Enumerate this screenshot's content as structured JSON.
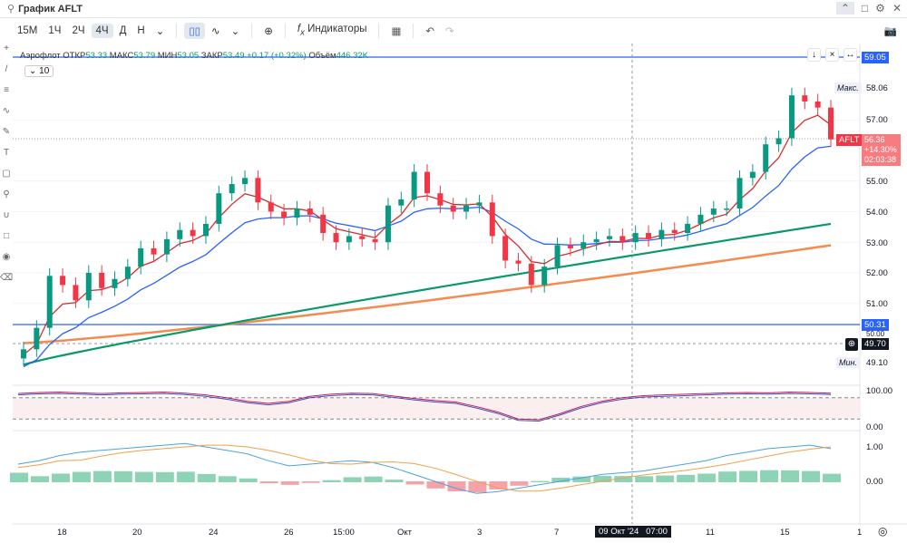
{
  "window": {
    "title": "График AFLT",
    "collapse_icon": "chevron-up",
    "icons": [
      "maximize-icon",
      "gear-icon",
      "close-icon"
    ]
  },
  "toolbar": {
    "intervals": [
      "15М",
      "1Ч",
      "2Ч",
      "4Ч",
      "Д",
      "Н"
    ],
    "active_interval": "4Ч",
    "indicators_label": "Индикаторы"
  },
  "legend": {
    "name": "Аэрофлот",
    "open_label": "ОТКР",
    "open": "53.33",
    "high_label": "МАКС",
    "high": "53.79",
    "low_label": "МИН",
    "low": "53.05",
    "close_label": "ЗАКР",
    "close": "53.49",
    "change": "+0.17 (+0.32%)",
    "volume_label": "Объём",
    "volume": "446.32K",
    "collapsed_count": "10"
  },
  "price_axis": {
    "ticks": [
      "58.06",
      "57.00",
      "55.00",
      "54.00",
      "53.00",
      "52.00",
      "51.00",
      "50.00"
    ],
    "line_top": "59.05",
    "line_low": "50.31",
    "crosshair": "49.70",
    "max_label": "Макс.",
    "max": "58.06",
    "min_label": "Мин.",
    "min": "49.10",
    "symbol": "AFLT",
    "last": "56.36",
    "last_change": "+14.30%",
    "countdown": "02:03:38"
  },
  "osc1_axis": [
    "100.00",
    "0.00"
  ],
  "osc2_axis": [
    "1.00",
    "0.00"
  ],
  "time_axis": {
    "ticks": [
      "18",
      "20",
      "24",
      "26",
      "15:00",
      "Окт",
      "3",
      "7",
      "11",
      "15",
      "1"
    ],
    "crosshair": "09 Окт '24   07:00"
  },
  "colors": {
    "up": "#089981",
    "down": "#f23645",
    "ma_fast": "#d32f2f",
    "ma_mid": "#2962ff",
    "ma_slow": "#089968",
    "ma_long": "#f28c50",
    "accent": "#2962ff"
  },
  "chart_data": {
    "type": "candlestick",
    "closes": [
      49.5,
      50.2,
      51.9,
      51.6,
      51.1,
      52.0,
      51.5,
      51.8,
      52.2,
      52.8,
      52.6,
      53.1,
      53.4,
      53.2,
      53.6,
      54.6,
      54.9,
      55.1,
      54.3,
      54.0,
      53.8,
      54.1,
      53.9,
      53.3,
      53.0,
      53.2,
      53.1,
      53.0,
      54.2,
      54.4,
      55.3,
      54.6,
      54.2,
      54.0,
      54.2,
      54.3,
      53.2,
      52.4,
      52.3,
      51.6,
      52.2,
      52.9,
      52.8,
      53.0,
      53.1,
      53.2,
      53.0,
      53.3,
      53.1,
      53.4,
      53.3,
      53.6,
      53.9,
      54.1,
      54.1,
      55.1,
      55.3,
      56.2,
      56.4,
      57.8,
      57.6,
      57.4,
      56.36
    ],
    "osc1": [
      92,
      95,
      96,
      94,
      92,
      94,
      95,
      96,
      93,
      88,
      80,
      70,
      64,
      70,
      84,
      90,
      93,
      92,
      85,
      78,
      72,
      68,
      55,
      40,
      20,
      18,
      35,
      55,
      70,
      80,
      86,
      88,
      90,
      92,
      94,
      95,
      94,
      96,
      95,
      93
    ],
    "osc2": [
      0.5,
      0.6,
      0.75,
      0.85,
      0.9,
      0.95,
      1.0,
      1.05,
      1.1,
      1.0,
      0.9,
      0.8,
      0.6,
      0.45,
      0.5,
      0.55,
      0.6,
      0.55,
      0.4,
      0.2,
      0.0,
      -0.2,
      -0.35,
      -0.3,
      -0.2,
      -0.1,
      0,
      0.1,
      0.2,
      0.25,
      0.3,
      0.4,
      0.5,
      0.6,
      0.75,
      0.85,
      0.95,
      1.0,
      1.05,
      0.95
    ]
  }
}
